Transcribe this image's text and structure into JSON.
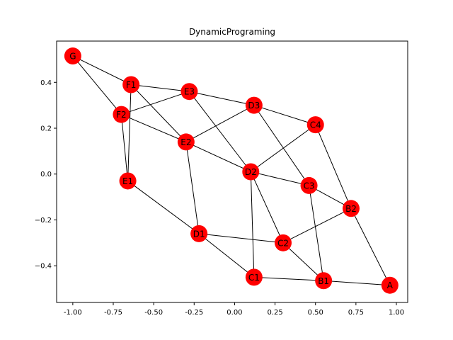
{
  "title": "DynamicPrograming",
  "colors": {
    "node": "#ff0000",
    "edge": "#000000",
    "axis": "#000000",
    "background": "#ffffff"
  },
  "chart_data": {
    "type": "graph",
    "title": "DynamicPrograming",
    "xlim": [
      -1.1,
      1.07
    ],
    "ylim": [
      -0.56,
      0.58
    ],
    "x_ticks": [
      "-1.00",
      "-0.75",
      "-0.50",
      "-0.25",
      "0.00",
      "0.25",
      "0.50",
      "0.75",
      "1.00"
    ],
    "x_tick_values": [
      -1.0,
      -0.75,
      -0.5,
      -0.25,
      0.0,
      0.25,
      0.5,
      0.75,
      1.0
    ],
    "y_ticks": [
      "0.4",
      "0.2",
      "0.0",
      "−0.2",
      "−0.4"
    ],
    "y_tick_values": [
      0.4,
      0.2,
      0.0,
      -0.2,
      -0.4
    ],
    "nodes": [
      {
        "id": "G",
        "x": -1.0,
        "y": 0.515
      },
      {
        "id": "F1",
        "x": -0.64,
        "y": 0.39
      },
      {
        "id": "F2",
        "x": -0.7,
        "y": 0.26
      },
      {
        "id": "E1",
        "x": -0.66,
        "y": -0.03
      },
      {
        "id": "E2",
        "x": -0.3,
        "y": 0.14
      },
      {
        "id": "E3",
        "x": -0.28,
        "y": 0.36
      },
      {
        "id": "D1",
        "x": -0.22,
        "y": -0.26
      },
      {
        "id": "D2",
        "x": 0.1,
        "y": 0.01
      },
      {
        "id": "D3",
        "x": 0.12,
        "y": 0.3
      },
      {
        "id": "C1",
        "x": 0.12,
        "y": -0.45
      },
      {
        "id": "C2",
        "x": 0.3,
        "y": -0.3
      },
      {
        "id": "C3",
        "x": 0.46,
        "y": -0.05
      },
      {
        "id": "C4",
        "x": 0.5,
        "y": 0.215
      },
      {
        "id": "B1",
        "x": 0.55,
        "y": -0.465
      },
      {
        "id": "B2",
        "x": 0.72,
        "y": -0.15
      },
      {
        "id": "A",
        "x": 0.96,
        "y": -0.485
      }
    ],
    "edges": [
      [
        "G",
        "F1"
      ],
      [
        "G",
        "F2"
      ],
      [
        "F1",
        "E1"
      ],
      [
        "F1",
        "E2"
      ],
      [
        "F1",
        "E3"
      ],
      [
        "F2",
        "E1"
      ],
      [
        "F2",
        "E2"
      ],
      [
        "F2",
        "E3"
      ],
      [
        "E1",
        "D1"
      ],
      [
        "E2",
        "D1"
      ],
      [
        "E2",
        "D2"
      ],
      [
        "E2",
        "D3"
      ],
      [
        "E3",
        "D2"
      ],
      [
        "E3",
        "D3"
      ],
      [
        "D1",
        "C1"
      ],
      [
        "D1",
        "C2"
      ],
      [
        "D2",
        "C1"
      ],
      [
        "D2",
        "C2"
      ],
      [
        "D2",
        "C3"
      ],
      [
        "D2",
        "C4"
      ],
      [
        "D3",
        "C3"
      ],
      [
        "D3",
        "C4"
      ],
      [
        "C1",
        "B1"
      ],
      [
        "C2",
        "B1"
      ],
      [
        "C2",
        "B2"
      ],
      [
        "C3",
        "B1"
      ],
      [
        "C3",
        "B2"
      ],
      [
        "C4",
        "B2"
      ],
      [
        "B1",
        "A"
      ],
      [
        "B2",
        "A"
      ]
    ]
  }
}
